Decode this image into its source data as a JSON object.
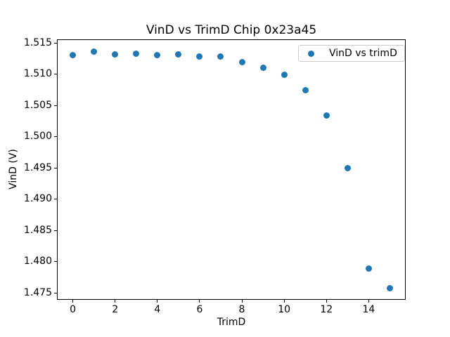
{
  "chart_data": {
    "type": "scatter",
    "title": "VinD vs TrimD Chip 0x23a45",
    "xlabel": "TrimD",
    "ylabel": "VinD (V)",
    "series": [
      {
        "name": "VinD vs trimD",
        "x": [
          0,
          1,
          2,
          3,
          4,
          5,
          6,
          7,
          8,
          9,
          10,
          11,
          12,
          13,
          14,
          15
        ],
        "y": [
          1.5131,
          1.5136,
          1.5132,
          1.5133,
          1.5131,
          1.5132,
          1.5128,
          1.5128,
          1.512,
          1.511,
          1.5099,
          1.5075,
          1.5034,
          1.495,
          1.4789,
          1.4758
        ]
      }
    ],
    "legend": {
      "entries": [
        "VinD vs trimD"
      ],
      "position": "upper right"
    },
    "xlim": [
      -0.75,
      15.75
    ],
    "ylim": [
      1.4739,
      1.5156
    ],
    "xticks": [
      0,
      2,
      4,
      6,
      8,
      10,
      12,
      14
    ],
    "ytick_labels": [
      "1.475",
      "1.480",
      "1.485",
      "1.490",
      "1.495",
      "1.500",
      "1.505",
      "1.510",
      "1.515"
    ],
    "grid": false,
    "marker_color": "#1f77b4"
  }
}
